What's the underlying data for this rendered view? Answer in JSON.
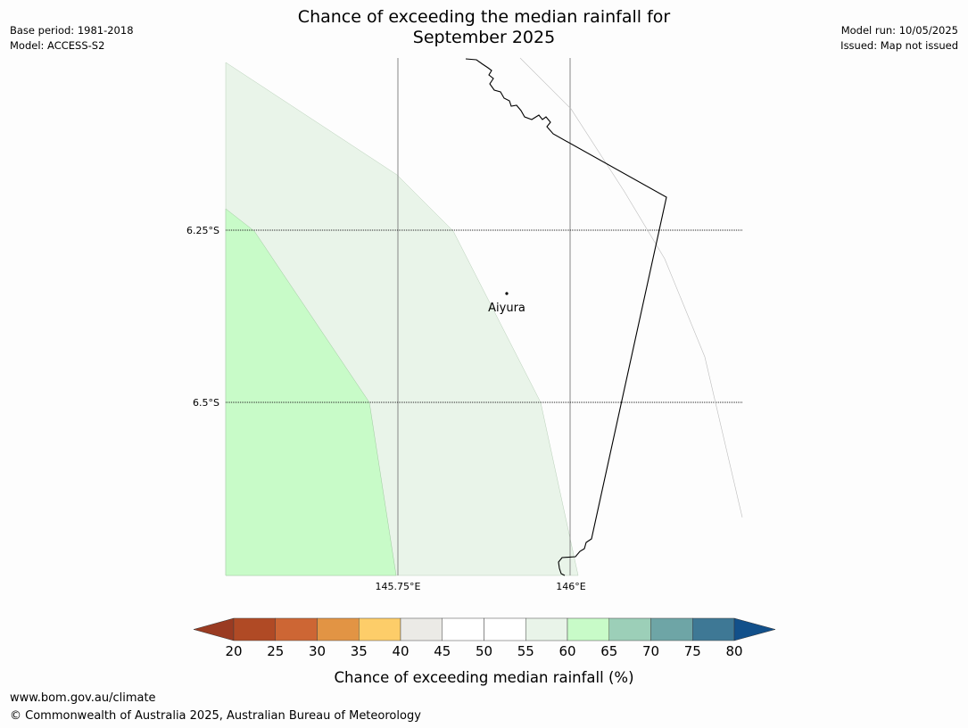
{
  "header": {
    "title_line1": "Chance of exceeding the median rainfall for",
    "title_line2": "September 2025",
    "base_period": "Base period: 1981-2018",
    "model": "Model: ACCESS-S2",
    "model_run": "Model run: 10/05/2025",
    "issued": "Issued: Map not issued"
  },
  "map": {
    "lat_labels": [
      "6.25°S",
      "6.5°S"
    ],
    "lon_labels": [
      "145.75°E",
      "146°E"
    ],
    "place": {
      "name": "Aiyura",
      "lat": -6.34,
      "lon": 145.905
    },
    "region_colors": {
      "55-60": "#e9f4e9",
      "60-65": "#c8fbc8"
    }
  },
  "colorbar": {
    "ticks": [
      "20",
      "25",
      "30",
      "35",
      "40",
      "45",
      "50",
      "55",
      "60",
      "65",
      "70",
      "75",
      "80"
    ],
    "colors": [
      "#b04a25",
      "#cd6634",
      "#e29444",
      "#fdcd69",
      "#ebeae6",
      "#ffffff",
      "#ffffff",
      "#e9f4e9",
      "#c8fbc8",
      "#9ccfb8",
      "#6ea5a6",
      "#3e7895"
    ],
    "under_color": "#9a3b22",
    "over_color": "#12508a",
    "label": "Chance of exceeding median rainfall (%)"
  },
  "footer": {
    "url": "www.bom.gov.au/climate",
    "copyright": "© Commonwealth of Australia 2025, Australian Bureau of Meteorology"
  }
}
